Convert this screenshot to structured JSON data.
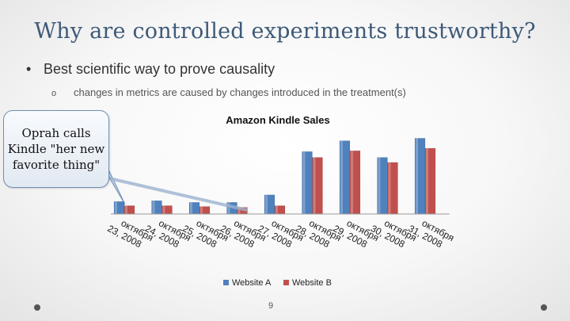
{
  "slide": {
    "title": "Why are controlled experiments trustworthy?",
    "bullet": "Best scientific way to prove causality",
    "bullet_marker": "•",
    "subbullet": "changes in metrics are caused by changes introduced in the treatment(s)",
    "subbullet_marker": "o",
    "callout": "Oprah calls Kindle \"her new favorite thing\"",
    "page_number": "9"
  },
  "chart_data": {
    "type": "bar",
    "title": "Amazon Kindle Sales",
    "categories": [
      "октября 23, 2008",
      "октября 24, 2008",
      "октября 25, 2008",
      "октября 26, 2008",
      "октября 27, 2008",
      "октября 28, 2008",
      "октября 29, 2008",
      "октября 30, 2008",
      "октября 31, 2008"
    ],
    "series": [
      {
        "name": "Website A",
        "color": "#4f81bd",
        "values": [
          15,
          16,
          14,
          14,
          23,
          75,
          88,
          68,
          91
        ]
      },
      {
        "name": "Website B",
        "color": "#c0504d",
        "values": [
          10,
          10,
          9,
          8,
          10,
          68,
          76,
          62,
          79
        ]
      }
    ],
    "ylim": [
      0,
      100
    ],
    "grid": false,
    "legend_position": "bottom",
    "xlabel": "",
    "ylabel": ""
  }
}
